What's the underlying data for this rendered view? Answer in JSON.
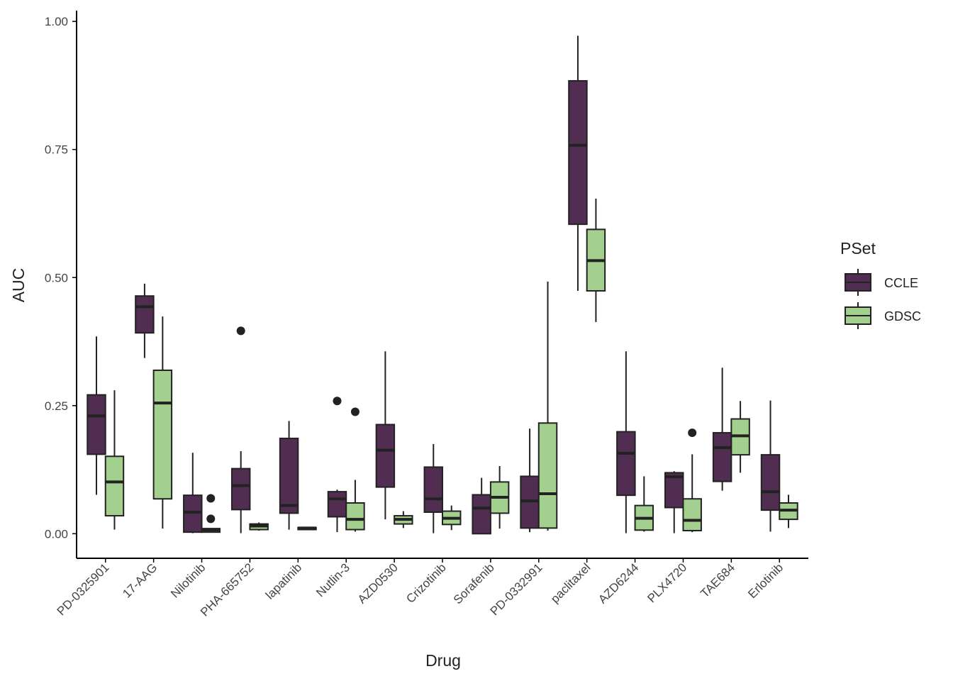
{
  "chart_data": {
    "type": "box",
    "x_label": "Drug",
    "y_label": "AUC",
    "legend_title": "PSet",
    "categories": [
      "PD-0325901",
      "17-AAG",
      "Nilotinib",
      "PHA-665752",
      "lapatinib",
      "Nutlin-3",
      "AZD0530",
      "Crizotinib",
      "Sorafenib",
      "PD-0332991",
      "paclitaxel",
      "AZD6244",
      "PLX4720",
      "TAE684",
      "Erlotinib"
    ],
    "ylim": [
      -0.048,
      1.021
    ],
    "yticks": [
      {
        "value": 0,
        "label": "0.00"
      },
      0.25,
      {
        "value": 0.5,
        "label": "0.50"
      },
      0.75,
      {
        "value": 1,
        "label": "1.00"
      }
    ],
    "grid": false,
    "legend": "right",
    "series": [
      {
        "name": "CCLE",
        "color": "#512d52",
        "min": [
          0.076,
          0.343,
          0.001,
          0.001,
          0.008,
          0.003,
          0.028,
          0.001,
          0.0,
          0.003,
          0.474,
          0.001,
          0.001,
          0.084,
          0.004
        ],
        "q1": [
          0.155,
          0.392,
          0.003,
          0.047,
          0.04,
          0.033,
          0.091,
          0.042,
          0.0,
          0.011,
          0.604,
          0.075,
          0.051,
          0.102,
          0.046
        ],
        "median": [
          0.23,
          0.443,
          0.042,
          0.094,
          0.055,
          0.068,
          0.163,
          0.068,
          0.05,
          0.064,
          0.758,
          0.157,
          0.111,
          0.168,
          0.082
        ],
        "q3": [
          0.271,
          0.464,
          0.075,
          0.127,
          0.186,
          0.082,
          0.213,
          0.13,
          0.076,
          0.112,
          0.884,
          0.199,
          0.119,
          0.197,
          0.154
        ],
        "max": [
          0.385,
          0.488,
          0.158,
          0.161,
          0.22,
          0.086,
          0.356,
          0.175,
          0.109,
          0.205,
          0.972,
          0.356,
          0.122,
          0.324,
          0.26
        ],
        "outliers": [
          [],
          [],
          [],
          [
            0.396
          ],
          [],
          [
            0.259
          ],
          [],
          [],
          [],
          [],
          [],
          [],
          [],
          [],
          []
        ]
      },
      {
        "name": "GDSC",
        "color": "#a3cf8f",
        "min": [
          0.008,
          0.01,
          0.003,
          0.006,
          0.008,
          0.004,
          0.011,
          0.007,
          0.01,
          0.006,
          0.413,
          0.004,
          0.003,
          0.119,
          0.011
        ],
        "q1": [
          0.035,
          0.068,
          0.003,
          0.008,
          0.008,
          0.008,
          0.019,
          0.018,
          0.04,
          0.011,
          0.474,
          0.007,
          0.006,
          0.154,
          0.028
        ],
        "median": [
          0.101,
          0.255,
          0.007,
          0.015,
          0.011,
          0.028,
          0.028,
          0.03,
          0.071,
          0.078,
          0.533,
          0.03,
          0.026,
          0.191,
          0.046
        ],
        "q3": [
          0.151,
          0.319,
          0.01,
          0.019,
          0.012,
          0.06,
          0.035,
          0.044,
          0.101,
          0.216,
          0.594,
          0.055,
          0.068,
          0.224,
          0.06
        ],
        "max": [
          0.28,
          0.424,
          0.01,
          0.022,
          0.012,
          0.105,
          0.044,
          0.055,
          0.132,
          0.492,
          0.654,
          0.112,
          0.155,
          0.259,
          0.076
        ],
        "outliers": [
          [],
          [],
          [
            0.069,
            0.029
          ],
          [],
          [],
          [
            0.238
          ],
          [],
          [],
          [],
          [],
          [],
          [],
          [
            0.197
          ],
          [],
          []
        ]
      }
    ]
  }
}
